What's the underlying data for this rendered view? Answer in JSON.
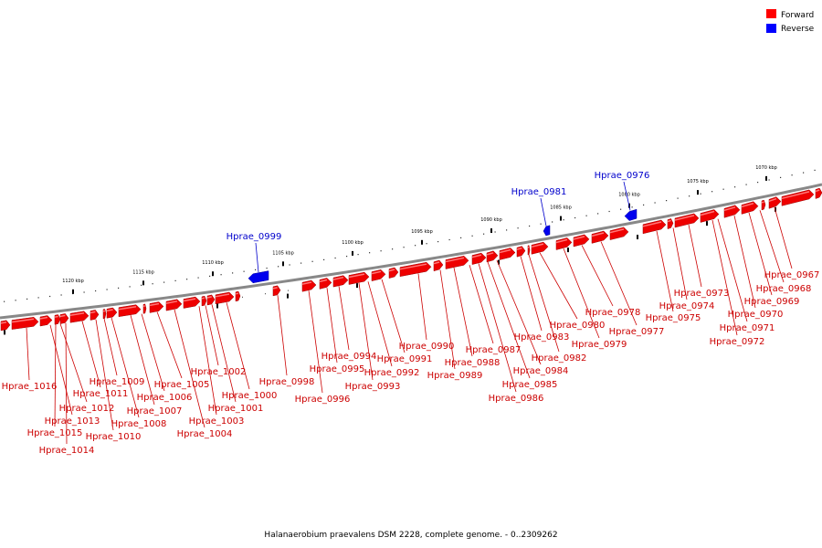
{
  "caption": "Halanaerobium praevalens DSM 2228, complete genome. - 0..2309262",
  "legend": {
    "forward": {
      "label": "Forward",
      "color": "#ff0000"
    },
    "reverse": {
      "label": "Reverse",
      "color": "#0000ff"
    }
  },
  "ruler_ticks": [
    "1120 kbp",
    "1115 kbp",
    "1110 kbp",
    "1105 kbp",
    "1100 kbp",
    "1095 kbp",
    "1090 kbp",
    "1085 kbp",
    "1080 kbp",
    "1075 kbp",
    "1070 kbp"
  ],
  "genes_forward": [
    "Hprae_1016",
    "Hprae_1015",
    "Hprae_1014",
    "Hprae_1013",
    "Hprae_1012",
    "Hprae_1011",
    "Hprae_1010",
    "Hprae_1009",
    "Hprae_1008",
    "Hprae_1007",
    "Hprae_1006",
    "Hprae_1005",
    "Hprae_1004",
    "Hprae_1003",
    "Hprae_1002",
    "Hprae_1001",
    "Hprae_1000",
    "Hprae_0998",
    "Hprae_0996",
    "Hprae_0995",
    "Hprae_0994",
    "Hprae_0993",
    "Hprae_0992",
    "Hprae_0991",
    "Hprae_0990",
    "Hprae_0989",
    "Hprae_0988",
    "Hprae_0987",
    "Hprae_0986",
    "Hprae_0985",
    "Hprae_0984",
    "Hprae_0983",
    "Hprae_0982",
    "Hprae_0980",
    "Hprae_0979",
    "Hprae_0978",
    "Hprae_0977",
    "Hprae_0975",
    "Hprae_0974",
    "Hprae_0973",
    "Hprae_0972",
    "Hprae_0971",
    "Hprae_0970",
    "Hprae_0969",
    "Hprae_0968",
    "Hprae_0967"
  ],
  "genes_reverse": [
    "Hprae_0999",
    "Hprae_0981",
    "Hprae_0976"
  ]
}
